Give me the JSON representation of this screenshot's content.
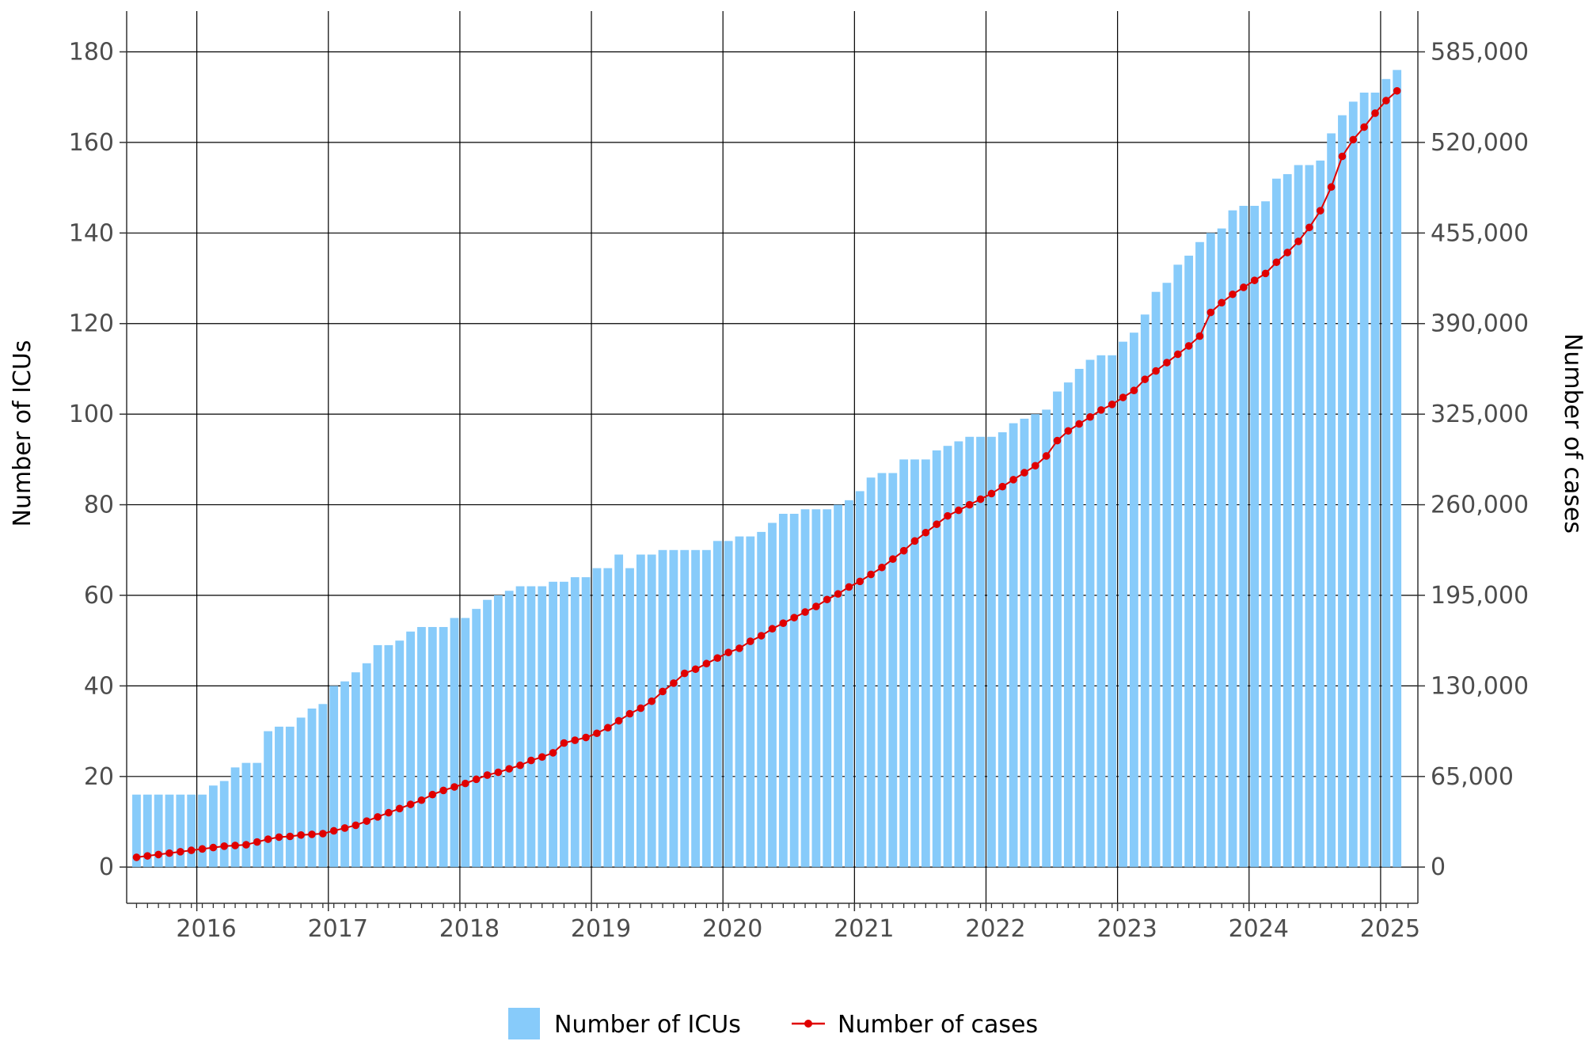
{
  "chart_data": {
    "type": "bar",
    "title": "",
    "xlabel": "",
    "ylabel": "Number of ICUs",
    "y2label": "Number of cases",
    "ylim": [
      -8,
      189
    ],
    "y2lim": [
      -26000,
      614250
    ],
    "yticks": [
      0,
      20,
      40,
      60,
      80,
      100,
      120,
      140,
      160,
      180
    ],
    "y2ticks": [
      0,
      65000,
      130000,
      195000,
      260000,
      325000,
      390000,
      455000,
      520000,
      585000
    ],
    "y2tick_labels": [
      "0",
      "65,000",
      "130,000",
      "195,000",
      "260,000",
      "325,000",
      "390,000",
      "455,000",
      "520,000",
      "585,000"
    ],
    "x_start": "2015-07",
    "x_end": "2025-03",
    "xticks": [
      "2016",
      "2017",
      "2018",
      "2019",
      "2020",
      "2021",
      "2022",
      "2023",
      "2024",
      "2025"
    ],
    "grid": true,
    "legend_position": "bottom",
    "colors": {
      "bars": "#87cbfa",
      "line": "#e00000",
      "grid": "#000000",
      "axis": "#333333",
      "tick_text": "#4d4d4d"
    },
    "series": [
      {
        "name": "Number of ICUs",
        "type": "bar",
        "axis": "left",
        "values": [
          16,
          16,
          16,
          16,
          16,
          16,
          16,
          18,
          19,
          22,
          23,
          23,
          30,
          31,
          31,
          33,
          35,
          36,
          40,
          41,
          43,
          45,
          49,
          49,
          50,
          52,
          53,
          53,
          53,
          55,
          55,
          57,
          59,
          60,
          61,
          62,
          62,
          62,
          63,
          63,
          64,
          64,
          66,
          66,
          69,
          66,
          69,
          69,
          70,
          70,
          70,
          70,
          70,
          72,
          72,
          73,
          73,
          74,
          76,
          78,
          78,
          79,
          79,
          79,
          80,
          81,
          83,
          86,
          87,
          87,
          90,
          90,
          90,
          92,
          93,
          94,
          95,
          95,
          95,
          96,
          98,
          99,
          100,
          101,
          105,
          107,
          110,
          112,
          113,
          113,
          116,
          118,
          122,
          127,
          129,
          133,
          135,
          138,
          140,
          141,
          145,
          146,
          146,
          147,
          152,
          153,
          155,
          155,
          156,
          162,
          166,
          169,
          171,
          171,
          174,
          176
        ]
      },
      {
        "name": "Number of cases",
        "type": "line",
        "axis": "right",
        "values": [
          7000,
          8000,
          9000,
          10000,
          11000,
          12000,
          13000,
          14000,
          15000,
          15500,
          16000,
          18000,
          20000,
          21500,
          22000,
          23000,
          23500,
          24000,
          26000,
          28000,
          30000,
          33000,
          36000,
          39000,
          42000,
          45000,
          48000,
          52000,
          55000,
          57500,
          60000,
          63000,
          66000,
          68000,
          70500,
          73000,
          76500,
          79000,
          82000,
          89000,
          91000,
          93000,
          96000,
          100000,
          105000,
          110000,
          114000,
          119000,
          126000,
          132000,
          139000,
          142000,
          146000,
          150000,
          154000,
          157000,
          162000,
          166000,
          171000,
          175000,
          179000,
          183000,
          187000,
          192000,
          196000,
          201000,
          205000,
          210000,
          215000,
          221000,
          227000,
          234000,
          240000,
          246000,
          252000,
          256000,
          260000,
          264000,
          268000,
          273000,
          278000,
          283000,
          288000,
          295000,
          306000,
          313000,
          318000,
          323000,
          328000,
          332000,
          337000,
          342000,
          350000,
          356000,
          362000,
          368000,
          374000,
          381000,
          398000,
          405000,
          411000,
          416000,
          421000,
          426000,
          434000,
          441000,
          449000,
          459000,
          471000,
          488000,
          510000,
          522000,
          531000,
          541000,
          550000,
          557000
        ]
      }
    ]
  },
  "legend": {
    "items": [
      {
        "label": "Number of ICUs"
      },
      {
        "label": "Number of cases"
      }
    ]
  }
}
